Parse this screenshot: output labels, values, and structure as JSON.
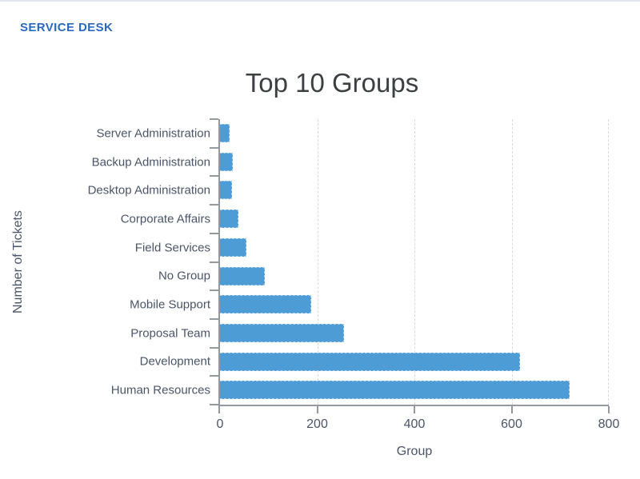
{
  "header": {
    "title": "SERVICE DESK"
  },
  "chart_data": {
    "type": "bar",
    "orientation": "horizontal",
    "title": "Top 10 Groups",
    "xlabel": "Group",
    "ylabel": "Number of Tickets",
    "categories": [
      "Server Administration",
      "Backup Administration",
      "Desktop Administration",
      "Corporate Affairs",
      "Field Services",
      "No Group",
      "Mobile Support",
      "Proposal Team",
      "Development",
      "Human Resources"
    ],
    "values": [
      20,
      26,
      24,
      38,
      55,
      92,
      188,
      255,
      618,
      719
    ],
    "xlim": [
      0,
      800
    ],
    "xticks": [
      0,
      200,
      400,
      600,
      800
    ],
    "grid": true,
    "legend": "none",
    "colors": {
      "bar": "#4d9cd5",
      "bar_border": "#a7cfec",
      "axis": "#9498a0",
      "label": "#4a5568",
      "title": "#3c3f43",
      "header": "#2a6abe",
      "gridline": "#d9dade",
      "page_border": "#e3e6ee"
    }
  }
}
